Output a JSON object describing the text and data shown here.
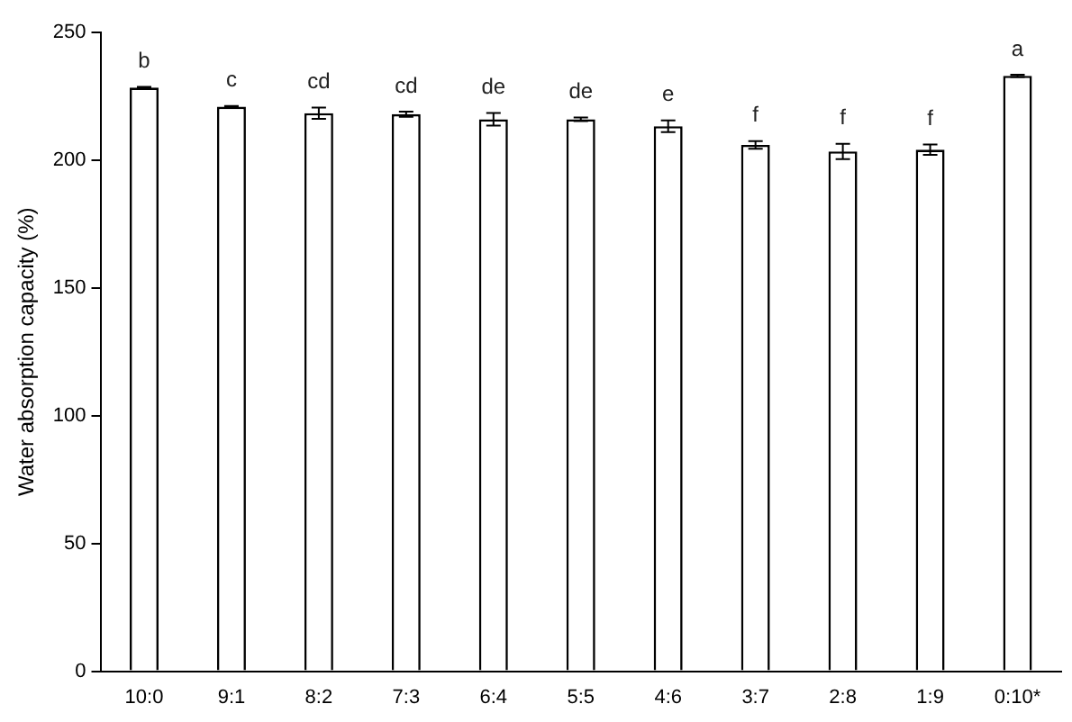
{
  "chart_data": {
    "type": "bar",
    "ylabel": "Water absorption capacity (%)",
    "categories": [
      "10:0",
      "9:1",
      "8:2",
      "7:3",
      "6:4",
      "5:5",
      "4:6",
      "3:7",
      "2:8",
      "1:9",
      "0:10*"
    ],
    "values": [
      228.4,
      220.9,
      218.4,
      218,
      216,
      216,
      213.3,
      206,
      203.4,
      204.1,
      233
    ],
    "errors": [
      0.3,
      0.3,
      2.2,
      1,
      2.5,
      0.7,
      2.3,
      1.5,
      3,
      2,
      0.4
    ],
    "color": "#ffffff",
    "ylim": [
      0,
      250
    ],
    "yticks": [
      0,
      50,
      100,
      150,
      200,
      250
    ],
    "grid": false,
    "legend": false,
    "annotations": [
      {
        "text": "b",
        "x": "10:0",
        "y": 228.7
      },
      {
        "text": "c",
        "x": "9:1",
        "y": 221.2
      },
      {
        "text": "cd",
        "x": "8:2",
        "y": 220.6
      },
      {
        "text": "cd",
        "x": "7:3",
        "y": 219
      },
      {
        "text": "de",
        "x": "6:4",
        "y": 218.5
      },
      {
        "text": "de",
        "x": "5:5",
        "y": 216.7
      },
      {
        "text": "e",
        "x": "4:6",
        "y": 215.6
      },
      {
        "text": "f",
        "x": "3:7",
        "y": 207.5
      },
      {
        "text": "f",
        "x": "2:8",
        "y": 206.4
      },
      {
        "text": "f",
        "x": "1:9",
        "y": 206.1
      },
      {
        "text": "a",
        "x": "0:10*",
        "y": 233.4
      }
    ]
  }
}
